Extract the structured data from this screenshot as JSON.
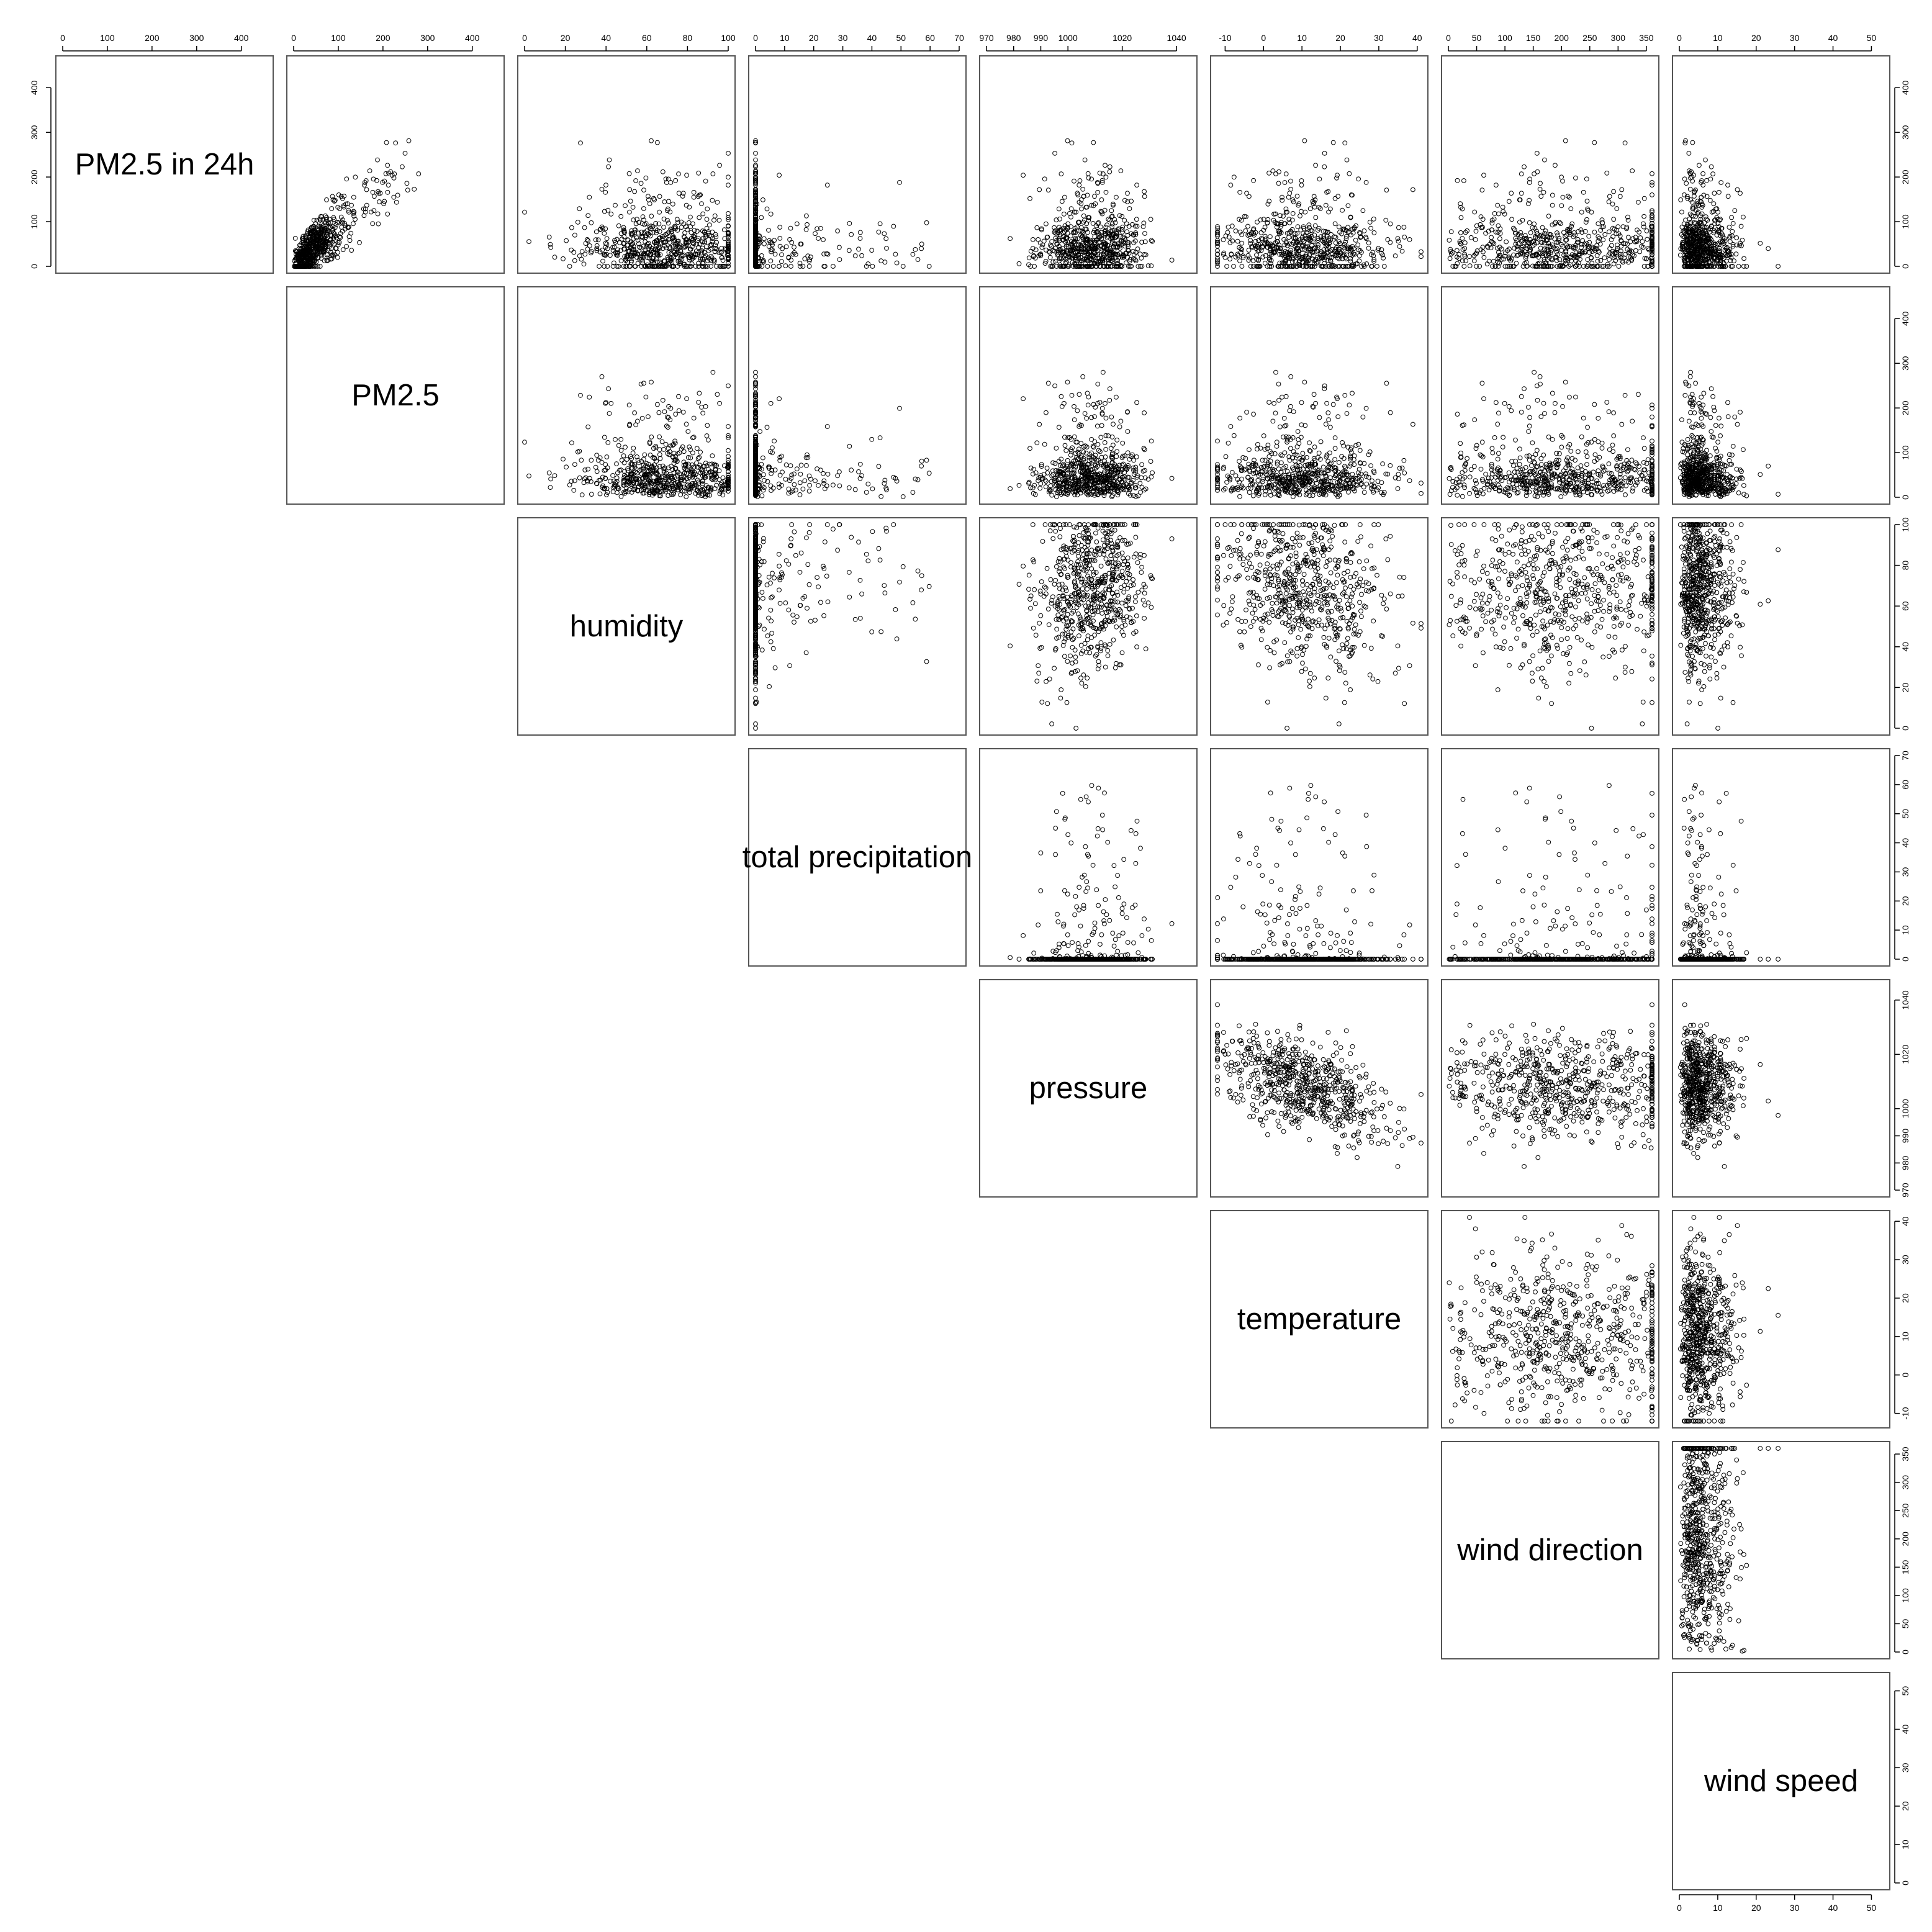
{
  "chart_data": {
    "type": "scatter",
    "matrix_kind": "pairs-upper-triangle",
    "title": "",
    "variables": [
      {
        "name": "PM2.5 in 24h",
        "range": [
          0,
          456
        ],
        "ticks": [
          0,
          100,
          200,
          300,
          400
        ]
      },
      {
        "name": "PM2.5",
        "range": [
          0,
          456
        ],
        "ticks": [
          0,
          100,
          200,
          300,
          400
        ]
      },
      {
        "name": "humidity",
        "range": [
          0,
          100
        ],
        "ticks": [
          0,
          20,
          40,
          60,
          80,
          100
        ]
      },
      {
        "name": "total precipitation",
        "range": [
          0,
          70
        ],
        "ticks": [
          0,
          10,
          20,
          30,
          40,
          50,
          60,
          70
        ]
      },
      {
        "name": "pressure",
        "range": [
          970,
          1045
        ],
        "ticks": [
          970,
          980,
          990,
          1000,
          1020,
          1040
        ]
      },
      {
        "name": "temperature",
        "range": [
          -12,
          41
        ],
        "ticks": [
          -10,
          0,
          10,
          20,
          30,
          40
        ]
      },
      {
        "name": "wind direction",
        "range": [
          0,
          360
        ],
        "ticks": [
          0,
          50,
          100,
          150,
          200,
          250,
          300,
          350
        ]
      },
      {
        "name": "wind speed",
        "range": [
          0,
          53
        ],
        "ticks": [
          0,
          10,
          20,
          30,
          40,
          50
        ]
      }
    ],
    "grid": false,
    "point_marker": "open-circle",
    "point_color": "#000000"
  }
}
